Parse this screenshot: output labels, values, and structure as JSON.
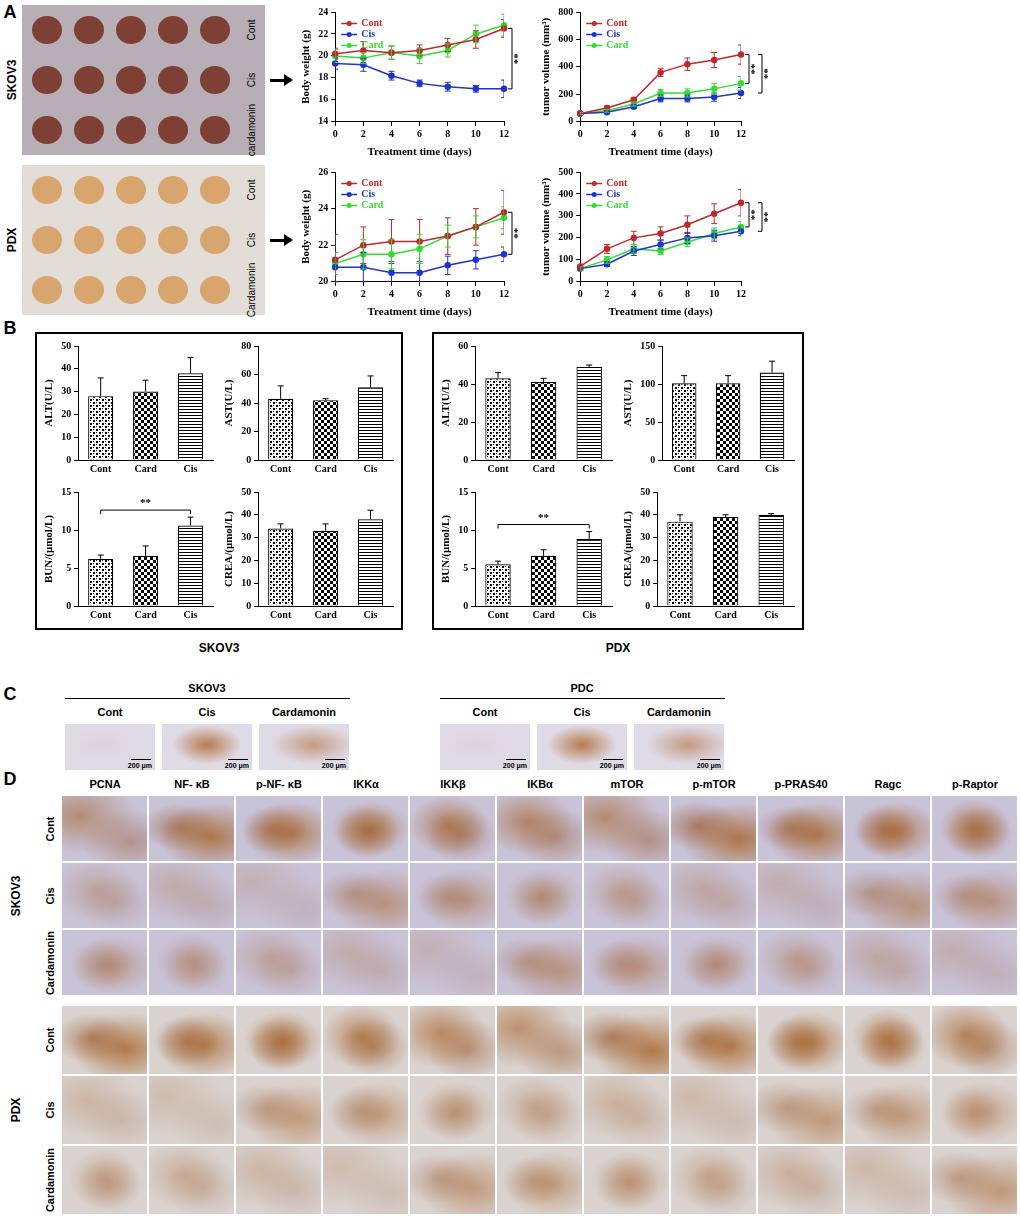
{
  "chart_data": [
    {
      "type": "line",
      "x": [
        0,
        2,
        4,
        6,
        8,
        10,
        12
      ],
      "xlim": [
        0,
        12
      ],
      "xticks": [
        0,
        2,
        4,
        6,
        8,
        10,
        12
      ],
      "ylim": [
        14,
        24
      ],
      "yticks": [
        14,
        16,
        18,
        20,
        22,
        24
      ],
      "x_label": "Treatment time (days)",
      "y_label": "Body weight (g)",
      "grid": false,
      "legend": "upper left",
      "marker": "circle",
      "series": [
        {
          "name": "Cont",
          "color": "#c0282d",
          "values": [
            20.2,
            20.5,
            20.3,
            20.5,
            21.0,
            21.5,
            22.5
          ],
          "errors": [
            0.5,
            0.8,
            0.6,
            0.5,
            0.6,
            0.8,
            0.8
          ]
        },
        {
          "name": "Cis",
          "color": "#2233cc",
          "values": [
            19.3,
            19.2,
            18.2,
            17.5,
            17.2,
            17.0,
            17.0
          ],
          "errors": [
            0.5,
            0.6,
            0.4,
            0.3,
            0.4,
            0.3,
            0.8
          ]
        },
        {
          "name": "Card",
          "color": "#33dd33",
          "values": [
            20.0,
            19.8,
            20.3,
            20.0,
            20.5,
            22.0,
            22.8
          ],
          "errors": [
            0.6,
            0.5,
            0.6,
            0.7,
            0.6,
            0.8,
            1.0
          ]
        }
      ],
      "annotations": [
        {
          "between": [
            "Cont",
            "Cis"
          ],
          "text": "**"
        }
      ]
    },
    {
      "type": "line",
      "x": [
        0,
        2,
        4,
        6,
        8,
        10,
        12
      ],
      "xlim": [
        0,
        12
      ],
      "xticks": [
        0,
        2,
        4,
        6,
        8,
        10,
        12
      ],
      "ylim": [
        0,
        800
      ],
      "yticks": [
        0,
        200,
        400,
        600,
        800
      ],
      "x_label": "Treatment time (days)",
      "y_label": "tumor volume (mm³)",
      "grid": false,
      "legend": "upper left",
      "marker": "circle",
      "series": [
        {
          "name": "Cont",
          "color": "#c0282d",
          "values": [
            60,
            100,
            160,
            360,
            420,
            450,
            490
          ],
          "errors": [
            10,
            15,
            15,
            30,
            45,
            55,
            70
          ]
        },
        {
          "name": "Cis",
          "color": "#2233cc",
          "values": [
            60,
            70,
            110,
            170,
            170,
            180,
            210
          ],
          "errors": [
            8,
            10,
            10,
            25,
            25,
            30,
            40
          ]
        },
        {
          "name": "Card",
          "color": "#33dd33",
          "values": [
            60,
            80,
            130,
            210,
            210,
            240,
            280
          ],
          "errors": [
            8,
            10,
            15,
            25,
            30,
            40,
            50
          ]
        }
      ],
      "annotations": [
        {
          "between": [
            "Cont",
            "Card"
          ],
          "text": "**"
        },
        {
          "between": [
            "Cont",
            "Cis"
          ],
          "text": "**"
        }
      ]
    },
    {
      "type": "line",
      "x": [
        0,
        2,
        4,
        6,
        8,
        10,
        12
      ],
      "xlim": [
        0,
        12
      ],
      "xticks": [
        0,
        2,
        4,
        6,
        8,
        10,
        12
      ],
      "ylim": [
        20,
        26
      ],
      "yticks": [
        20,
        22,
        24,
        26
      ],
      "x_label": "Treatment time (days)",
      "y_label": "Body weight (g)",
      "grid": false,
      "legend": "upper left",
      "marker": "circle",
      "series": [
        {
          "name": "Cont",
          "color": "#c0282d",
          "values": [
            21.2,
            22.0,
            22.2,
            22.2,
            22.5,
            23.0,
            23.8
          ],
          "errors": [
            1.4,
            1.0,
            1.2,
            1.2,
            1.0,
            1.0,
            1.2
          ]
        },
        {
          "name": "Cis",
          "color": "#2233cc",
          "values": [
            20.8,
            20.8,
            20.5,
            20.5,
            20.9,
            21.2,
            21.5
          ],
          "errors": [
            0.8,
            0.8,
            0.6,
            0.6,
            0.5,
            0.5,
            0.4
          ]
        },
        {
          "name": "Card",
          "color": "#33dd33",
          "values": [
            21.0,
            21.5,
            21.5,
            21.8,
            22.5,
            23.0,
            23.5
          ],
          "errors": [
            0.6,
            0.8,
            0.8,
            0.8,
            0.6,
            0.6,
            0.6
          ]
        }
      ],
      "annotations": [
        {
          "between": [
            "Cont",
            "Cis"
          ],
          "text": "**"
        }
      ]
    },
    {
      "type": "line",
      "x": [
        0,
        2,
        4,
        6,
        8,
        10,
        12
      ],
      "xlim": [
        0,
        12
      ],
      "xticks": [
        0,
        2,
        4,
        6,
        8,
        10,
        12
      ],
      "ylim": [
        0,
        500
      ],
      "yticks": [
        0,
        100,
        200,
        300,
        400,
        500
      ],
      "x_label": "Treatment time (days)",
      "y_label": "tumor volume (mm³)",
      "grid": false,
      "legend": "upper left",
      "marker": "circle",
      "series": [
        {
          "name": "Cont",
          "color": "#c0282d",
          "values": [
            70,
            150,
            200,
            220,
            260,
            310,
            360
          ],
          "errors": [
            10,
            20,
            30,
            30,
            40,
            45,
            60
          ]
        },
        {
          "name": "Cis",
          "color": "#2233cc",
          "values": [
            60,
            80,
            140,
            170,
            200,
            210,
            230
          ],
          "errors": [
            8,
            10,
            20,
            20,
            25,
            25,
            20
          ]
        },
        {
          "name": "Card",
          "color": "#33dd33",
          "values": [
            60,
            100,
            150,
            140,
            180,
            220,
            250
          ],
          "errors": [
            8,
            15,
            20,
            15,
            20,
            25,
            25
          ]
        }
      ],
      "annotations": [
        {
          "between": [
            "Cont",
            "Card"
          ],
          "text": "**"
        },
        {
          "between": [
            "Cont",
            "Cis"
          ],
          "text": "**"
        }
      ]
    },
    {
      "type": "bar",
      "categories": [
        "Cont",
        "Card",
        "Cis"
      ],
      "values": [
        28,
        30,
        38
      ],
      "errors": [
        8,
        5,
        7
      ],
      "color": "#000000",
      "ylim": [
        0,
        50
      ],
      "yticks": [
        0,
        10,
        20,
        30,
        40,
        50
      ],
      "y_label": "ALT(U/L)",
      "grid": false
    },
    {
      "type": "bar",
      "categories": [
        "Cont",
        "Card",
        "Cis"
      ],
      "values": [
        43,
        42,
        51
      ],
      "errors": [
        9,
        1,
        8
      ],
      "color": "#000000",
      "ylim": [
        0,
        80
      ],
      "yticks": [
        0,
        20,
        40,
        60,
        80
      ],
      "y_label": "AST(U/L)",
      "grid": false
    },
    {
      "type": "bar",
      "categories": [
        "Cont",
        "Card",
        "Cis"
      ],
      "values": [
        6.2,
        6.6,
        10.6
      ],
      "errors": [
        0.5,
        1.3,
        1.1
      ],
      "color": "#000000",
      "ylim": [
        0,
        15
      ],
      "yticks": [
        0,
        5,
        10,
        15
      ],
      "y_label": "BUN/(μmol/L)",
      "grid": false,
      "annotations": [
        {
          "between": [
            "Cont",
            "Cis"
          ],
          "text": "**"
        }
      ]
    },
    {
      "type": "bar",
      "categories": [
        "Cont",
        "Card",
        "Cis"
      ],
      "values": [
        34,
        33,
        38
      ],
      "errors": [
        2,
        3,
        4
      ],
      "color": "#000000",
      "ylim": [
        0,
        50
      ],
      "yticks": [
        0,
        10,
        20,
        30,
        40,
        50
      ],
      "y_label": "CREA/(μmol/L)",
      "grid": false
    },
    {
      "type": "bar",
      "categories": [
        "Cont",
        "Card",
        "Cis"
      ],
      "values": [
        43,
        41,
        49
      ],
      "errors": [
        3,
        2,
        1
      ],
      "color": "#000000",
      "ylim": [
        0,
        60
      ],
      "yticks": [
        0,
        20,
        40,
        60
      ],
      "y_label": "ALT(U/L)",
      "grid": false
    },
    {
      "type": "bar",
      "categories": [
        "Cont",
        "Card",
        "Cis"
      ],
      "values": [
        101,
        101,
        115
      ],
      "errors": [
        10,
        10,
        15
      ],
      "color": "#000000",
      "ylim": [
        0,
        150
      ],
      "yticks": [
        0,
        50,
        100,
        150
      ],
      "y_label": "AST(U/L)",
      "grid": false
    },
    {
      "type": "bar",
      "categories": [
        "Cont",
        "Card",
        "Cis"
      ],
      "values": [
        5.5,
        6.6,
        8.8
      ],
      "errors": [
        0.4,
        0.8,
        1.0
      ],
      "color": "#000000",
      "ylim": [
        0,
        15
      ],
      "yticks": [
        0,
        5,
        10,
        15
      ],
      "y_label": "BUN/(μmol/L)",
      "grid": false,
      "annotations": [
        {
          "between": [
            "Cont",
            "Cis"
          ],
          "text": "**"
        }
      ]
    },
    {
      "type": "bar",
      "categories": [
        "Cont",
        "Card",
        "Cis"
      ],
      "values": [
        37,
        39,
        40
      ],
      "errors": [
        3,
        1,
        0.5
      ],
      "color": "#000000",
      "ylim": [
        0,
        50
      ],
      "yticks": [
        0,
        10,
        20,
        30,
        40,
        50
      ],
      "y_label": "CREA/(μmol/L)",
      "grid": false
    }
  ],
  "figure": {
    "panel_A": {
      "label": "A",
      "rows": [
        {
          "name": "SKOV3",
          "photo_labels": [
            "Cont",
            "Cis",
            "cardamonin"
          ]
        },
        {
          "name": "PDX",
          "photo_labels": [
            "Cont",
            "Cis",
            "Cardamonin"
          ]
        }
      ]
    },
    "panel_B": {
      "label": "B",
      "groups": [
        "SKOV3",
        "PDX"
      ]
    },
    "panel_C": {
      "label": "C",
      "groups": [
        {
          "name": "SKOV3",
          "columns": [
            "Cont",
            "Cis",
            "Cardamonin"
          ],
          "scale_bar": "200 μm"
        },
        {
          "name": "PDC",
          "columns": [
            "Cont",
            "Cis",
            "Cardamonin"
          ],
          "scale_bar": "200 μm"
        }
      ]
    },
    "panel_D": {
      "label": "D",
      "columns": [
        "PCNA",
        "NF- κB",
        "p-NF- κB",
        "IKKα",
        "IKKβ",
        "IKBα",
        "mTOR",
        "p-mTOR",
        "p-PRAS40",
        "Ragc",
        "p-Raptor"
      ],
      "groups": [
        {
          "name": "SKOV3",
          "rows": [
            "Cont",
            "Cis",
            "Cardamonin"
          ]
        },
        {
          "name": "PDX",
          "rows": [
            "Cont",
            "Cis",
            "Cardamonin"
          ]
        }
      ]
    }
  }
}
